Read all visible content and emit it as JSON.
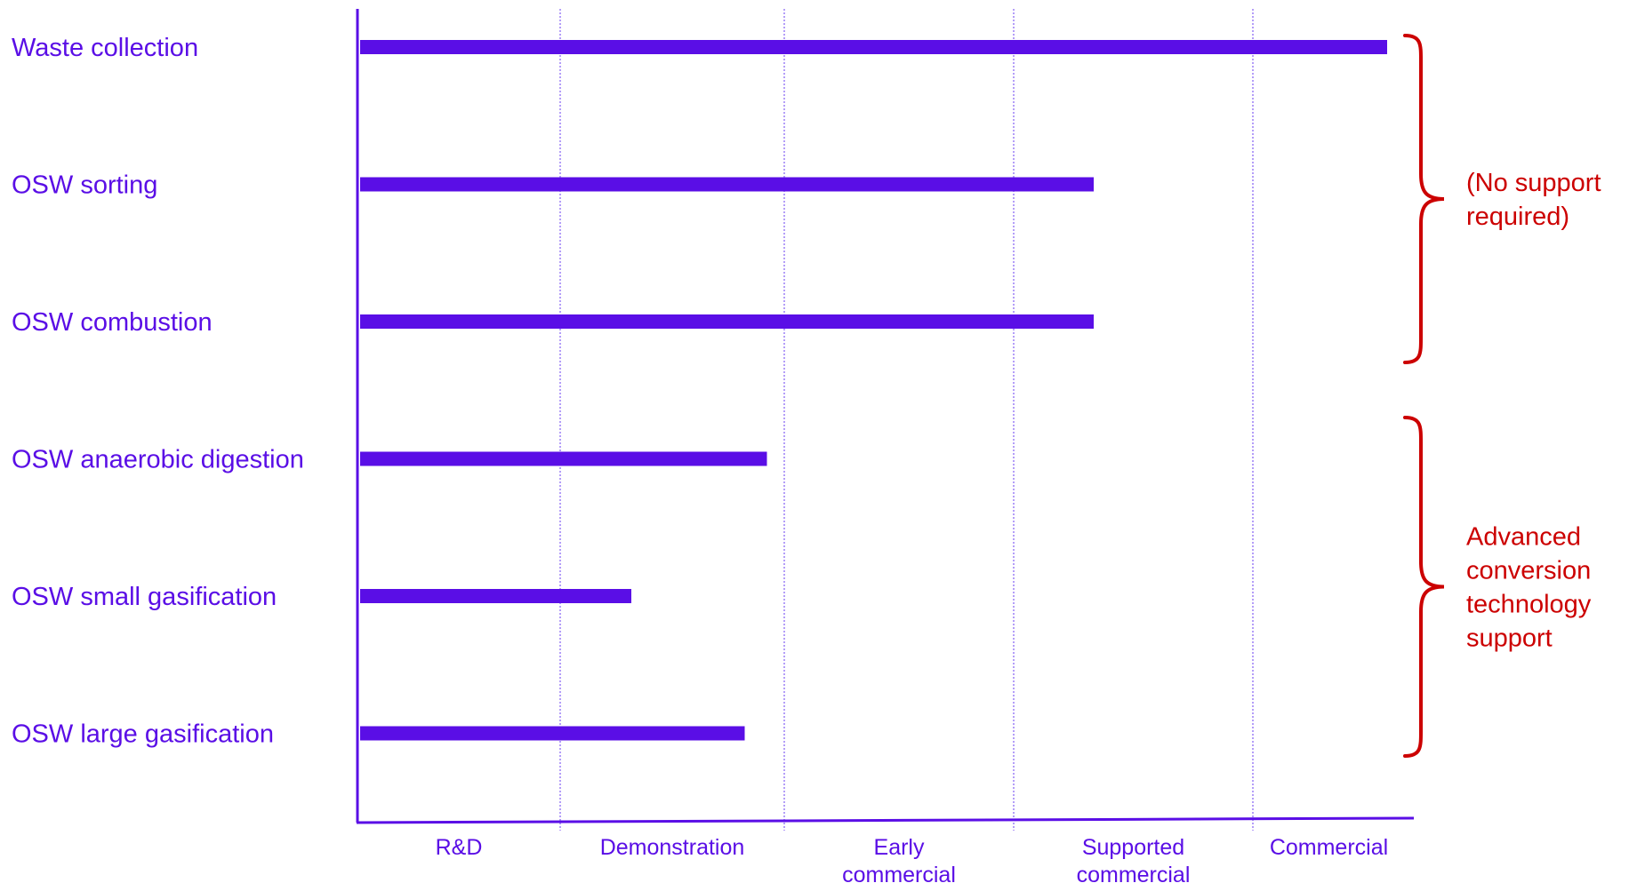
{
  "chart_data": {
    "type": "bar",
    "orientation": "horizontal",
    "categories": [
      "Waste collection",
      "OSW sorting",
      "OSW combustion",
      "OSW anaerobic digestion",
      "OSW small gasification",
      "OSW large gasification"
    ],
    "values": [
      4.62,
      3.3,
      3.3,
      1.83,
      1.22,
      1.73
    ],
    "x_ticks": [
      {
        "lines": [
          "R&D"
        ]
      },
      {
        "lines": [
          "Demonstration"
        ]
      },
      {
        "lines": [
          "Early",
          "commercial"
        ]
      },
      {
        "lines": [
          "Supported",
          "commercial"
        ]
      },
      {
        "lines": [
          "Commercial"
        ]
      }
    ],
    "xlim": [
      0,
      4.7
    ],
    "grid": {
      "vertical": true,
      "style": "dotted"
    },
    "groups": [
      {
        "lines": [
          "(No support",
          "required)"
        ],
        "members": [
          0,
          1,
          2
        ]
      },
      {
        "lines": [
          "Advanced",
          "conversion",
          "technology",
          "support"
        ],
        "members": [
          3,
          4,
          5
        ]
      }
    ],
    "title": "",
    "xlabel": "",
    "ylabel": "",
    "colors": {
      "bars": "#5a0ee6",
      "text": "#5a0ee6",
      "axis": "#5a0ee6",
      "grid": "#6a3cf0",
      "groups": "#cc0000"
    }
  }
}
